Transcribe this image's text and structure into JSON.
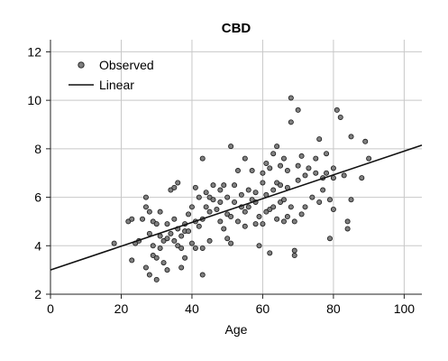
{
  "chart_data": {
    "type": "scatter",
    "title": "CBD",
    "xlabel": "Age",
    "ylabel": "",
    "xlim": [
      0,
      105
    ],
    "ylim": [
      2,
      12.5
    ],
    "x_ticks": [
      0,
      20,
      40,
      60,
      80,
      100
    ],
    "y_ticks": [
      2,
      4,
      6,
      8,
      10,
      12
    ],
    "grid": true,
    "legend_position": "top-left",
    "colors": {
      "point_fill": "#7f7f7f",
      "point_stroke": "#1a1a1a",
      "line": "#111111",
      "grid": "#c8c8c8"
    },
    "series": [
      {
        "name": "Observed",
        "type": "scatter",
        "points": [
          [
            18,
            4.1
          ],
          [
            22,
            5.0
          ],
          [
            23,
            3.4
          ],
          [
            23,
            5.1
          ],
          [
            24,
            4.1
          ],
          [
            25,
            4.2
          ],
          [
            26,
            5.1
          ],
          [
            27,
            5.6
          ],
          [
            27,
            6.0
          ],
          [
            27,
            3.1
          ],
          [
            28,
            4.5
          ],
          [
            28,
            5.4
          ],
          [
            28,
            2.8
          ],
          [
            29,
            3.6
          ],
          [
            29,
            4.0
          ],
          [
            29,
            5.0
          ],
          [
            30,
            2.6
          ],
          [
            30,
            3.5
          ],
          [
            30,
            4.9
          ],
          [
            31,
            3.9
          ],
          [
            31,
            4.4
          ],
          [
            31,
            5.4
          ],
          [
            32,
            3.3
          ],
          [
            32,
            4.2
          ],
          [
            33,
            3.0
          ],
          [
            33,
            4.3
          ],
          [
            33,
            4.9
          ],
          [
            34,
            4.5
          ],
          [
            34,
            6.3
          ],
          [
            35,
            4.2
          ],
          [
            35,
            5.1
          ],
          [
            35,
            6.4
          ],
          [
            36,
            4.0
          ],
          [
            36,
            4.7
          ],
          [
            36,
            6.6
          ],
          [
            37,
            3.9
          ],
          [
            37,
            4.4
          ],
          [
            37,
            3.1
          ],
          [
            38,
            3.5
          ],
          [
            38,
            4.9
          ],
          [
            38,
            4.6
          ],
          [
            39,
            4.6
          ],
          [
            39,
            5.3
          ],
          [
            40,
            4.1
          ],
          [
            40,
            5.6
          ],
          [
            41,
            3.9
          ],
          [
            41,
            5.0
          ],
          [
            41,
            6.4
          ],
          [
            42,
            4.8
          ],
          [
            42,
            6.0
          ],
          [
            43,
            2.8
          ],
          [
            43,
            3.9
          ],
          [
            43,
            5.1
          ],
          [
            43,
            7.6
          ],
          [
            44,
            5.6
          ],
          [
            44,
            6.2
          ],
          [
            45,
            4.2
          ],
          [
            45,
            5.4
          ],
          [
            45,
            6.0
          ],
          [
            46,
            5.9
          ],
          [
            46,
            6.5
          ],
          [
            47,
            5.5
          ],
          [
            48,
            5.0
          ],
          [
            48,
            5.8
          ],
          [
            48,
            6.3
          ],
          [
            49,
            4.7
          ],
          [
            49,
            6.5
          ],
          [
            50,
            4.3
          ],
          [
            50,
            5.3
          ],
          [
            50,
            6.0
          ],
          [
            51,
            4.1
          ],
          [
            51,
            5.2
          ],
          [
            51,
            8.1
          ],
          [
            52,
            5.8
          ],
          [
            52,
            6.5
          ],
          [
            53,
            5.0
          ],
          [
            53,
            7.1
          ],
          [
            54,
            5.6
          ],
          [
            54,
            6.1
          ],
          [
            55,
            4.8
          ],
          [
            55,
            5.4
          ],
          [
            55,
            7.6
          ],
          [
            56,
            5.6
          ],
          [
            56,
            6.3
          ],
          [
            57,
            5.9
          ],
          [
            57,
            7.1
          ],
          [
            58,
            4.9
          ],
          [
            58,
            5.8
          ],
          [
            58,
            6.2
          ],
          [
            59,
            4.0
          ],
          [
            59,
            5.2
          ],
          [
            60,
            4.9
          ],
          [
            60,
            6.6
          ],
          [
            60,
            7.0
          ],
          [
            61,
            5.4
          ],
          [
            61,
            6.1
          ],
          [
            61,
            7.4
          ],
          [
            62,
            3.7
          ],
          [
            62,
            5.5
          ],
          [
            62,
            7.2
          ],
          [
            63,
            5.6
          ],
          [
            63,
            6.3
          ],
          [
            63,
            7.8
          ],
          [
            64,
            5.1
          ],
          [
            64,
            6.6
          ],
          [
            64,
            8.1
          ],
          [
            65,
            5.8
          ],
          [
            65,
            6.5
          ],
          [
            65,
            7.3
          ],
          [
            66,
            5.0
          ],
          [
            66,
            5.9
          ],
          [
            66,
            7.6
          ],
          [
            67,
            5.2
          ],
          [
            67,
            6.4
          ],
          [
            67,
            7.1
          ],
          [
            68,
            5.6
          ],
          [
            68,
            9.1
          ],
          [
            68,
            10.1
          ],
          [
            69,
            3.6
          ],
          [
            69,
            3.8
          ],
          [
            69,
            5.0
          ],
          [
            70,
            6.7
          ],
          [
            70,
            7.3
          ],
          [
            70,
            9.6
          ],
          [
            71,
            5.3
          ],
          [
            71,
            7.7
          ],
          [
            72,
            5.6
          ],
          [
            72,
            6.9
          ],
          [
            73,
            7.2
          ],
          [
            74,
            6.0
          ],
          [
            75,
            7.0
          ],
          [
            75,
            7.6
          ],
          [
            76,
            5.8
          ],
          [
            76,
            8.4
          ],
          [
            77,
            6.3
          ],
          [
            77,
            6.8
          ],
          [
            78,
            7.0
          ],
          [
            78,
            7.8
          ],
          [
            79,
            5.9
          ],
          [
            79,
            4.3
          ],
          [
            80,
            7.2
          ],
          [
            80,
            5.5
          ],
          [
            80,
            6.8
          ],
          [
            81,
            9.6
          ],
          [
            82,
            9.3
          ],
          [
            83,
            6.9
          ],
          [
            84,
            5.0
          ],
          [
            84,
            4.7
          ],
          [
            85,
            5.9
          ],
          [
            85,
            8.5
          ],
          [
            88,
            6.8
          ],
          [
            89,
            8.3
          ],
          [
            90,
            7.6
          ]
        ]
      },
      {
        "name": "Linear",
        "type": "line",
        "points": [
          [
            0,
            3.0
          ],
          [
            105,
            8.15
          ]
        ]
      }
    ]
  }
}
